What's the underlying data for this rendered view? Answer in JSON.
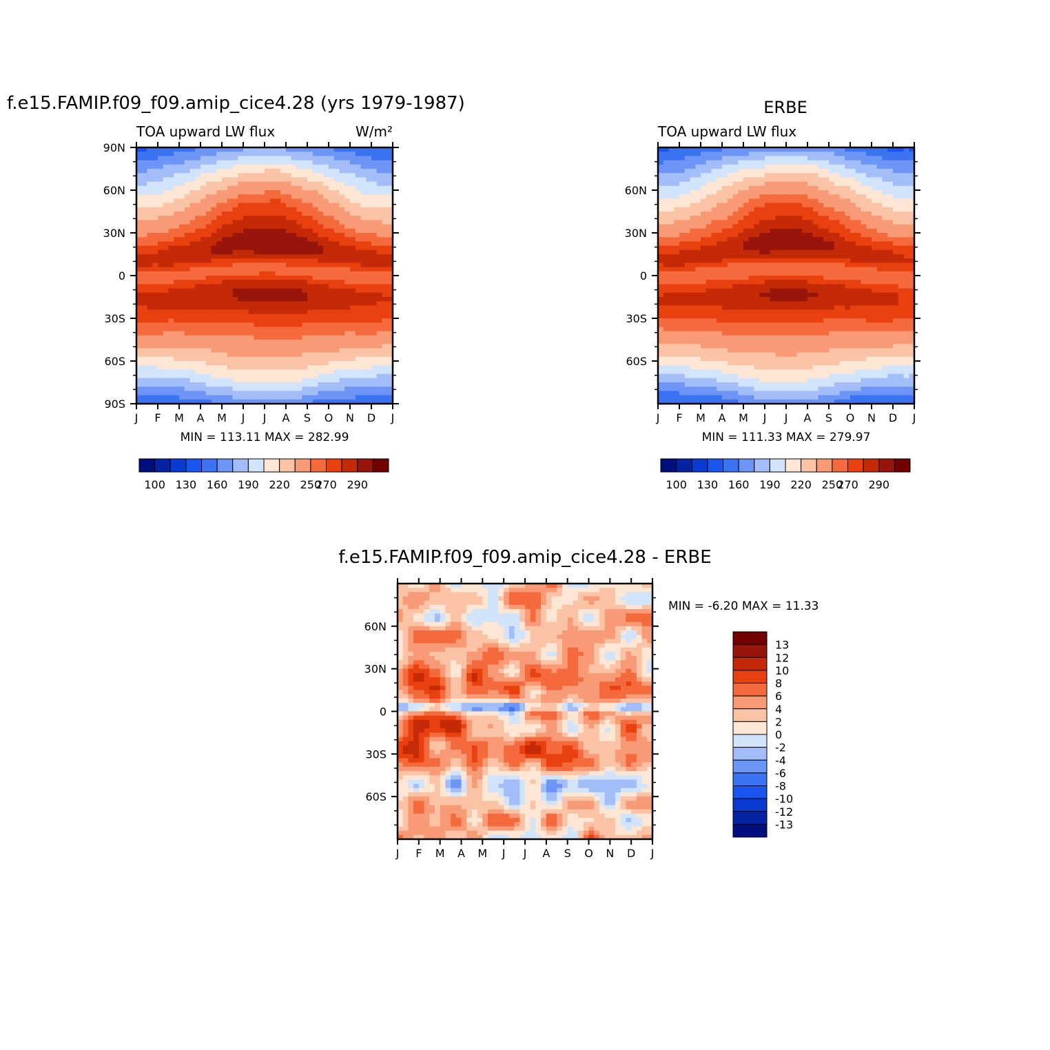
{
  "chart_data": [
    {
      "type": "heatmap",
      "id": "model",
      "title": "f.e15.FAMIP.f09_f09.amip_cice4.28 (yrs 1979-1987)",
      "subtitle_left": "TOA upward LW flux",
      "units": "W/m²",
      "x_ticks": [
        "J",
        "F",
        "M",
        "A",
        "M",
        "J",
        "J",
        "A",
        "S",
        "O",
        "N",
        "D",
        "J"
      ],
      "y_ticks": [
        "90N",
        "60N",
        "30N",
        "0",
        "30S",
        "60S",
        "90S"
      ],
      "ylim": [
        -90,
        90
      ],
      "stats_text": "MIN = 113.11 MAX = 282.99",
      "min": 113.11,
      "max": 282.99,
      "colorbar_labels": [
        "100",
        "130",
        "160",
        "190",
        "220",
        "250",
        "270",
        "290"
      ],
      "levels": [
        100,
        115,
        130,
        145,
        160,
        175,
        190,
        205,
        220,
        235,
        250,
        260,
        270,
        280,
        290
      ]
    },
    {
      "type": "heatmap",
      "id": "obs",
      "title": "ERBE",
      "subtitle_left": "TOA upward LW flux",
      "x_ticks": [
        "J",
        "F",
        "M",
        "A",
        "M",
        "J",
        "J",
        "A",
        "S",
        "O",
        "N",
        "D",
        "J"
      ],
      "y_ticks": [
        "60N",
        "30N",
        "0",
        "30S",
        "60S"
      ],
      "ylim": [
        -90,
        90
      ],
      "stats_text": "MIN = 111.33 MAX = 279.97",
      "min": 111.33,
      "max": 279.97,
      "colorbar_labels": [
        "100",
        "130",
        "160",
        "190",
        "220",
        "250",
        "270",
        "290"
      ],
      "levels": [
        100,
        115,
        130,
        145,
        160,
        175,
        190,
        205,
        220,
        235,
        250,
        260,
        270,
        280,
        290
      ]
    },
    {
      "type": "heatmap",
      "id": "diff",
      "title": "f.e15.FAMIP.f09_f09.amip_cice4.28 - ERBE",
      "x_ticks": [
        "J",
        "F",
        "M",
        "A",
        "M",
        "J",
        "J",
        "A",
        "S",
        "O",
        "N",
        "D",
        "J"
      ],
      "y_ticks": [
        "60N",
        "30N",
        "0",
        "30S",
        "60S"
      ],
      "ylim": [
        -90,
        90
      ],
      "stats_text": "MIN = -6.20 MAX = 11.33",
      "min": -6.2,
      "max": 11.33,
      "colorbar_labels": [
        "13",
        "12",
        "10",
        "8",
        "6",
        "4",
        "2",
        "0",
        "-2",
        "-4",
        "-6",
        "-8",
        "-10",
        "-12",
        "-13"
      ],
      "levels": [
        -13,
        -12,
        -10,
        -8,
        -6,
        -4,
        -2,
        0,
        2,
        4,
        6,
        8,
        10,
        12,
        13
      ]
    }
  ],
  "palette": [
    "#000f7d",
    "#0424a3",
    "#0a3ad2",
    "#1a55ef",
    "#3c73f2",
    "#6d95f6",
    "#a3bdf9",
    "#d2e4fb",
    "#fde6d4",
    "#fbc3a6",
    "#f89a76",
    "#f46a3c",
    "#e8400f",
    "#c42a07",
    "#97150a",
    "#720000"
  ]
}
